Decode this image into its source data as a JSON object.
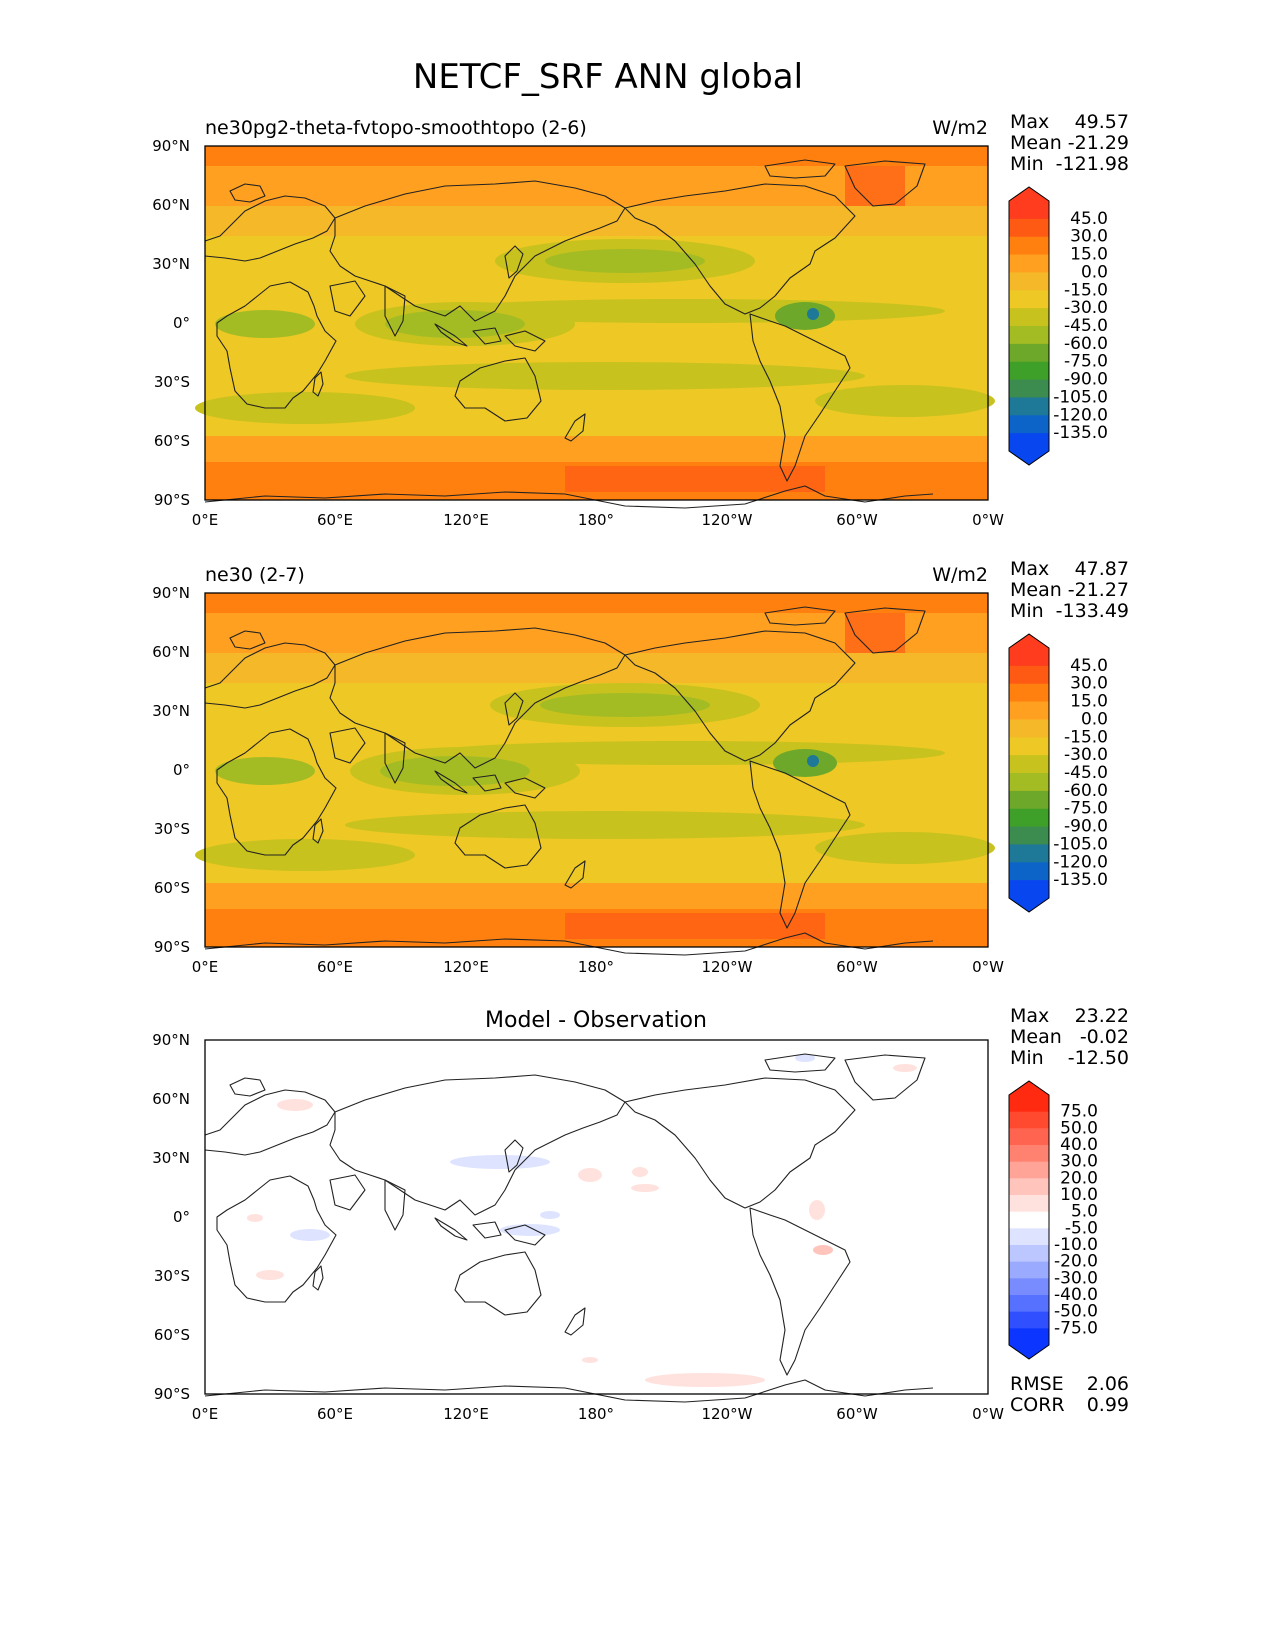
{
  "title": "NETCF_SRF ANN global",
  "lon_ticks": [
    "0°E",
    "60°E",
    "120°E",
    "180°",
    "120°W",
    "60°W",
    "0°W"
  ],
  "lat_ticks": [
    "90°N",
    "60°N",
    "30°N",
    "0°",
    "30°S",
    "60°S",
    "90°S"
  ],
  "stat_labels": {
    "max": "Max",
    "mean": "Mean",
    "min": "Min",
    "rmse": "RMSE",
    "corr": "CORR"
  },
  "panels": [
    {
      "title": "ne30pg2-theta-fvtopo-smoothtopo (2-6)",
      "units": "W/m2",
      "stats": {
        "max": "49.57",
        "mean": "-21.29",
        "min": "-121.98"
      },
      "colorbar": {
        "labels": [
          "45.0",
          "30.0",
          "15.0",
          "0.0",
          "-15.0",
          "-30.0",
          "-45.0",
          "-60.0",
          "-75.0",
          "-90.0",
          "-105.0",
          "-120.0",
          "-135.0"
        ],
        "colors": [
          "#ff3c1e",
          "#ff5a14",
          "#ff800e",
          "#ffa020",
          "#f5b828",
          "#eec824",
          "#c8c21e",
          "#a4bc24",
          "#6ea82a",
          "#3ea028",
          "#3c8c50",
          "#1e7898",
          "#0c64c8",
          "#0846f0"
        ]
      }
    },
    {
      "title": "ne30 (2-7)",
      "units": "W/m2",
      "stats": {
        "max": "47.87",
        "mean": "-21.27",
        "min": "-133.49"
      },
      "colorbar": {
        "labels": [
          "45.0",
          "30.0",
          "15.0",
          "0.0",
          "-15.0",
          "-30.0",
          "-45.0",
          "-60.0",
          "-75.0",
          "-90.0",
          "-105.0",
          "-120.0",
          "-135.0"
        ],
        "colors": [
          "#ff3c1e",
          "#ff5a14",
          "#ff800e",
          "#ffa020",
          "#f5b828",
          "#eec824",
          "#c8c21e",
          "#a4bc24",
          "#6ea82a",
          "#3ea028",
          "#3c8c50",
          "#1e7898",
          "#0c64c8",
          "#0846f0"
        ]
      }
    },
    {
      "title": "Model - Observation",
      "units": "",
      "stats": {
        "max": "23.22",
        "mean": "-0.02",
        "min": "-12.50"
      },
      "metrics": {
        "rmse": "2.06",
        "corr": "0.99"
      },
      "colorbar": {
        "labels": [
          "75.0",
          "50.0",
          "40.0",
          "30.0",
          "20.0",
          "10.0",
          "5.0",
          "-5.0",
          "-10.0",
          "-20.0",
          "-30.0",
          "-40.0",
          "-50.0",
          "-75.0"
        ],
        "colors": [
          "#ff2a10",
          "#ff4a30",
          "#ff6450",
          "#ff8270",
          "#ffa496",
          "#ffc4bc",
          "#ffe2de",
          "#ffffff",
          "#dee4ff",
          "#bcc6ff",
          "#9aaaff",
          "#788cff",
          "#5670ff",
          "#3050ff",
          "#0c36ff"
        ]
      }
    }
  ]
}
